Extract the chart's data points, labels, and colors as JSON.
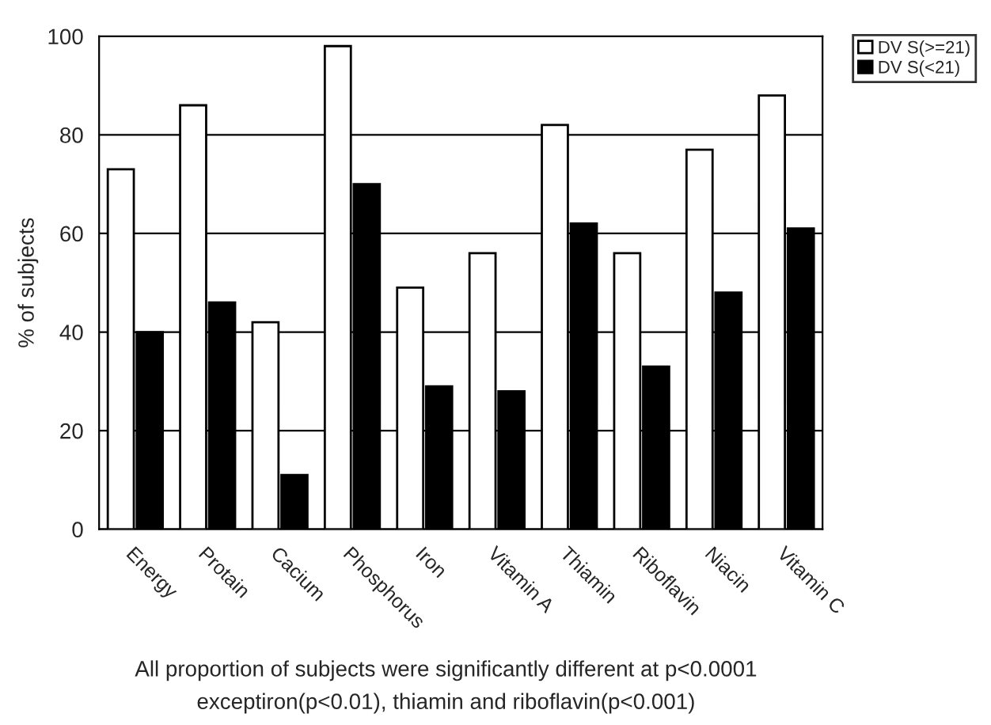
{
  "chart_data": {
    "type": "bar",
    "ylabel": "% of subjects",
    "categories": [
      "Energy",
      "Protain",
      "Cacium",
      "Phosphorus",
      "Iron",
      "Vitamin A",
      "Thiamin",
      "Riboflavin",
      "Niacin",
      "Vitamin C"
    ],
    "series": [
      {
        "name": "DV S(>=21)",
        "color": "#ffffff",
        "values": [
          73,
          86,
          42,
          98,
          49,
          56,
          82,
          56,
          77,
          88
        ]
      },
      {
        "name": "DV S(<21)",
        "color": "#000000",
        "values": [
          40,
          46,
          11,
          70,
          29,
          28,
          62,
          33,
          48,
          61
        ]
      }
    ],
    "ylim": [
      0,
      100
    ],
    "yticks": [
      0,
      20,
      40,
      60,
      80,
      100
    ],
    "grid": "y",
    "legend": "top right",
    "annotations": [
      "All proportion of subjects were significantly different at p<0.0001",
      "exceptiron(p<0.01), thiamin and riboflavin(p<0.001)"
    ]
  }
}
